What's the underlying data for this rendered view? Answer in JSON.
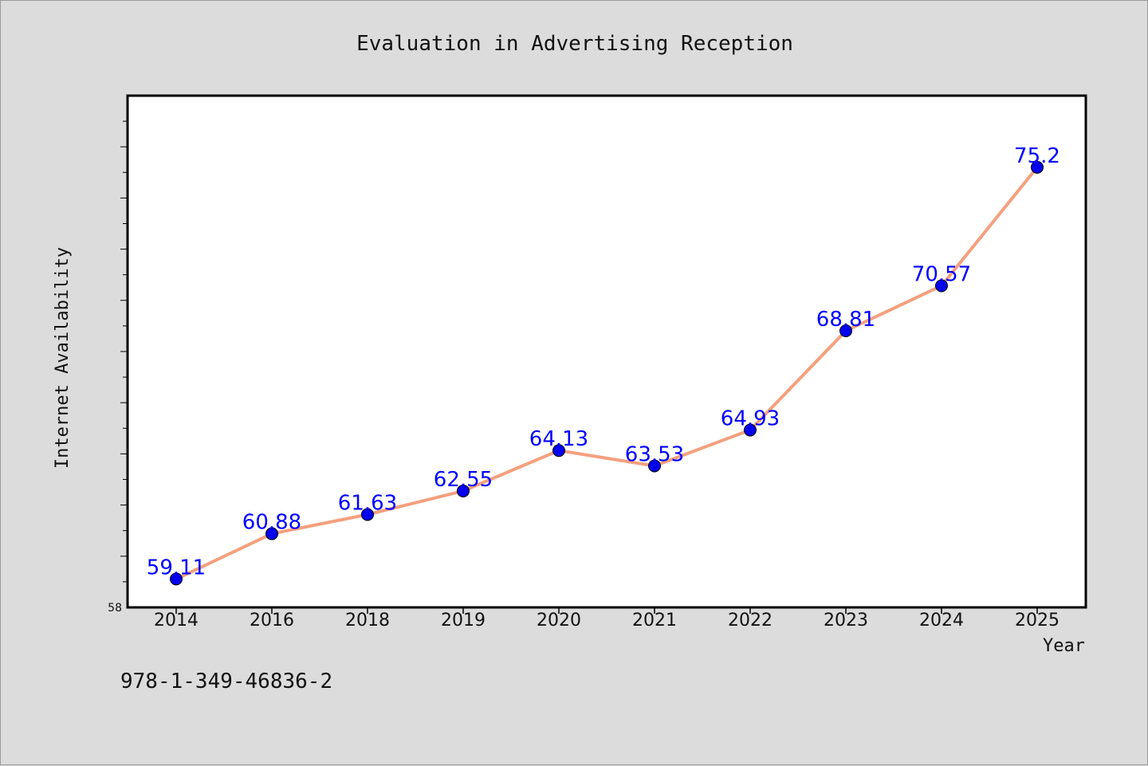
{
  "chart_data": {
    "type": "line",
    "title": "Evaluation in Advertising Reception",
    "xlabel": "Year",
    "ylabel": "Internet Availability",
    "categories": [
      "2014",
      "2016",
      "2018",
      "2019",
      "2020",
      "2021",
      "2022",
      "2023",
      "2024",
      "2025"
    ],
    "values": [
      59.11,
      60.88,
      61.63,
      62.55,
      64.13,
      63.53,
      64.93,
      68.81,
      70.57,
      75.2
    ],
    "ylim": [
      58,
      78
    ],
    "y_tick_labels": [
      "58"
    ],
    "grid": false,
    "line_color": "#f4a07e",
    "marker_color": "#0000ee",
    "label_color": "#0000ff"
  },
  "footer": {
    "code": "978-1-349-46836-2"
  }
}
